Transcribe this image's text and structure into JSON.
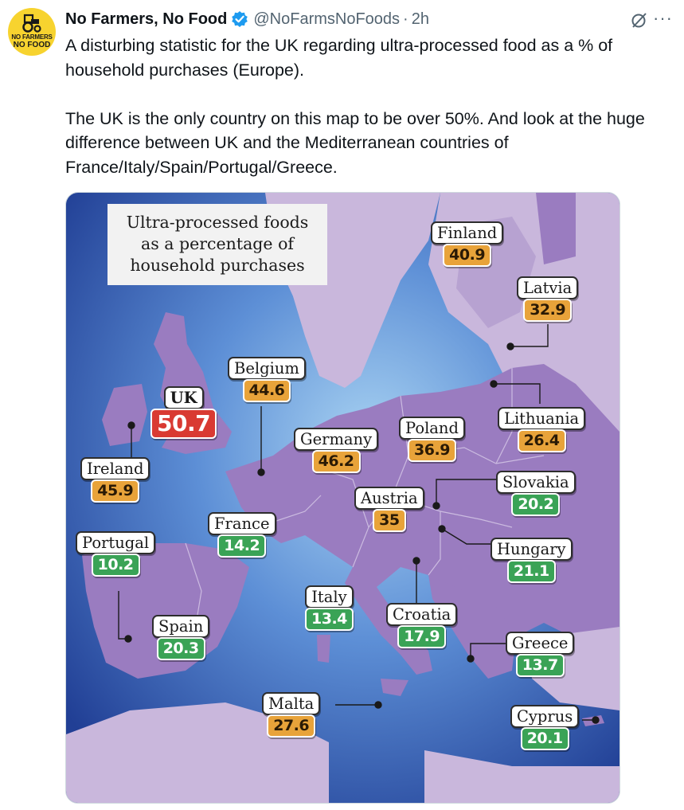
{
  "post": {
    "display_name": "No Farmers, No Food",
    "handle": "@NoFarmsNoFoods",
    "time": "2h",
    "separator": "·",
    "avatar_text_1": "NO FARMERS",
    "avatar_text_2": "NO FOOD",
    "text": "A disturbing statistic for the UK regarding ultra-processed food as a % of household purchases (Europe).\n\nThe UK is the only country on this map to be over 50%. And look at the huge difference between UK and the Mediterranean countries of France/Italy/Spain/Portugal/Greece.",
    "more_label": "···"
  },
  "map": {
    "title": "Ultra-processed foods as a percentage of household purchases",
    "title_line1": "Ultra-processed foods",
    "title_line2": "as a percentage of",
    "title_line3": "household purchases",
    "colors": {
      "sea": "#3f63b8",
      "land": "#9a7cc0",
      "land_light": "#c9b7dc",
      "amber": "#e8a33a",
      "green": "#3aa356",
      "red": "#d93a32"
    },
    "countries": [
      {
        "name": "Finland",
        "value": "40.9",
        "color": "amber"
      },
      {
        "name": "Latvia",
        "value": "32.9",
        "color": "amber"
      },
      {
        "name": "Belgium",
        "value": "44.6",
        "color": "amber"
      },
      {
        "name": "UK",
        "value": "50.7",
        "color": "red"
      },
      {
        "name": "Lithuania",
        "value": "26.4",
        "color": "amber"
      },
      {
        "name": "Poland",
        "value": "36.9",
        "color": "amber"
      },
      {
        "name": "Germany",
        "value": "46.2",
        "color": "amber"
      },
      {
        "name": "Ireland",
        "value": "45.9",
        "color": "amber"
      },
      {
        "name": "Slovakia",
        "value": "20.2",
        "color": "green"
      },
      {
        "name": "Austria",
        "value": "35",
        "color": "amber"
      },
      {
        "name": "France",
        "value": "14.2",
        "color": "green"
      },
      {
        "name": "Portugal",
        "value": "10.2",
        "color": "green"
      },
      {
        "name": "Hungary",
        "value": "21.1",
        "color": "green"
      },
      {
        "name": "Italy",
        "value": "13.4",
        "color": "green"
      },
      {
        "name": "Croatia",
        "value": "17.9",
        "color": "green"
      },
      {
        "name": "Spain",
        "value": "20.3",
        "color": "green"
      },
      {
        "name": "Greece",
        "value": "13.7",
        "color": "green"
      },
      {
        "name": "Malta",
        "value": "27.6",
        "color": "amber"
      },
      {
        "name": "Cyprus",
        "value": "20.1",
        "color": "green"
      }
    ]
  }
}
